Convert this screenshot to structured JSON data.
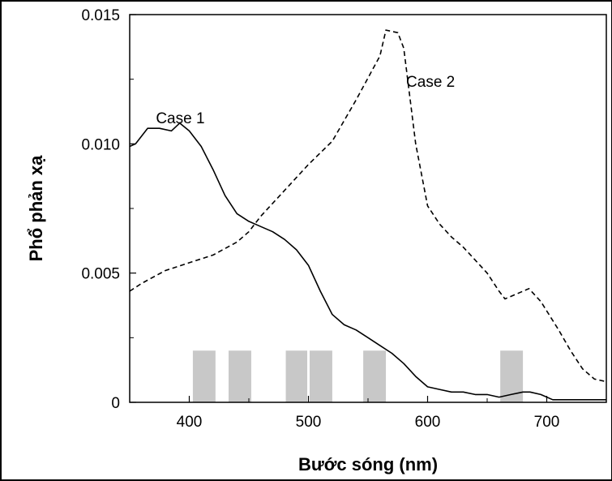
{
  "chart_data": {
    "type": "line",
    "title": "",
    "xlabel": "Bước sóng (nm)",
    "ylabel": "Phổ phản xạ",
    "xlim": [
      350,
      750
    ],
    "ylim": [
      0,
      0.015
    ],
    "x_ticks": [
      {
        "value": 400,
        "label": "400"
      },
      {
        "value": 500,
        "label": "500"
      },
      {
        "value": 600,
        "label": "600"
      },
      {
        "value": 700,
        "label": "700"
      }
    ],
    "y_ticks": [
      {
        "value": 0,
        "label": "0"
      },
      {
        "value": 0.005,
        "label": "0.005"
      },
      {
        "value": 0.01,
        "label": "0.010"
      },
      {
        "value": 0.015,
        "label": "0.015"
      }
    ],
    "grid": false,
    "legend": "none",
    "series": [
      {
        "name": "Case 1",
        "style": "solid",
        "color": "#000000",
        "x": [
          350,
          355,
          365,
          375,
          385,
          392,
          400,
          410,
          420,
          430,
          440,
          450,
          460,
          470,
          480,
          490,
          500,
          510,
          520,
          530,
          540,
          550,
          560,
          570,
          580,
          590,
          600,
          610,
          620,
          630,
          640,
          650,
          660,
          670,
          680,
          686,
          695,
          705,
          720,
          735,
          750
        ],
        "y": [
          0.0099,
          0.01,
          0.0106,
          0.0106,
          0.0105,
          0.0108,
          0.0105,
          0.0099,
          0.009,
          0.008,
          0.0073,
          0.007,
          0.0068,
          0.0066,
          0.0063,
          0.0059,
          0.0053,
          0.0043,
          0.0034,
          0.003,
          0.0028,
          0.0025,
          0.0022,
          0.0019,
          0.0015,
          0.001,
          0.0006,
          0.0005,
          0.0004,
          0.0004,
          0.0003,
          0.0003,
          0.0002,
          0.0003,
          0.0004,
          0.0004,
          0.0003,
          0.0001,
          0.0001,
          0.0001,
          0.0001
        ]
      },
      {
        "name": "Case 2",
        "style": "dashed",
        "color": "#000000",
        "x": [
          350,
          360,
          380,
          400,
          420,
          440,
          450,
          460,
          480,
          500,
          520,
          540,
          560,
          565,
          575,
          580,
          590,
          600,
          610,
          620,
          630,
          640,
          650,
          660,
          665,
          675,
          685,
          695,
          710,
          720,
          730,
          740,
          750
        ],
        "y": [
          0.0043,
          0.0046,
          0.0051,
          0.0054,
          0.0057,
          0.0062,
          0.0066,
          0.0072,
          0.0082,
          0.0092,
          0.0101,
          0.0117,
          0.0134,
          0.0144,
          0.0143,
          0.0137,
          0.01,
          0.0076,
          0.0069,
          0.0064,
          0.006,
          0.0055,
          0.005,
          0.0043,
          0.004,
          0.0042,
          0.0044,
          0.0039,
          0.0028,
          0.002,
          0.0013,
          0.0009,
          0.0008
        ]
      }
    ],
    "bands": [
      {
        "x_start": 403,
        "x_end": 422,
        "y_top": 0.002
      },
      {
        "x_start": 433,
        "x_end": 452,
        "y_top": 0.002
      },
      {
        "x_start": 481,
        "x_end": 499,
        "y_top": 0.002
      },
      {
        "x_start": 501,
        "x_end": 520,
        "y_top": 0.002
      },
      {
        "x_start": 546,
        "x_end": 565,
        "y_top": 0.002
      },
      {
        "x_start": 661,
        "x_end": 680,
        "y_top": 0.002
      }
    ],
    "band_color": "#c8c8c8",
    "annotations": [
      {
        "text": "Case 1",
        "x": 372,
        "y": 0.0108
      },
      {
        "text": "Case 2",
        "x": 582,
        "y": 0.0122
      }
    ]
  }
}
